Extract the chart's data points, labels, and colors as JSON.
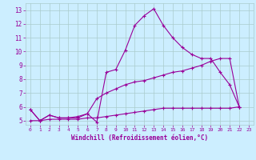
{
  "xlabel": "Windchill (Refroidissement éolien,°C)",
  "x_values": [
    0,
    1,
    2,
    3,
    4,
    5,
    6,
    7,
    8,
    9,
    10,
    11,
    12,
    13,
    14,
    15,
    16,
    17,
    18,
    19,
    20,
    21,
    22,
    23
  ],
  "line1": [
    5.8,
    5.0,
    5.4,
    5.2,
    5.2,
    5.2,
    5.5,
    4.9,
    8.5,
    8.7,
    10.1,
    11.9,
    12.6,
    13.1,
    11.9,
    11.0,
    10.3,
    9.8,
    9.5,
    9.5,
    8.5,
    7.6,
    6.0,
    null
  ],
  "line2": [
    5.8,
    5.0,
    5.4,
    5.2,
    5.2,
    5.3,
    5.5,
    6.6,
    7.0,
    7.3,
    7.6,
    7.8,
    7.9,
    8.1,
    8.3,
    8.5,
    8.6,
    8.8,
    9.0,
    9.3,
    9.5,
    9.5,
    6.0,
    null
  ],
  "line3": [
    5.0,
    5.0,
    5.1,
    5.1,
    5.1,
    5.1,
    5.2,
    5.2,
    5.3,
    5.4,
    5.5,
    5.6,
    5.7,
    5.8,
    5.9,
    5.9,
    5.9,
    5.9,
    5.9,
    5.9,
    5.9,
    5.9,
    6.0,
    null
  ],
  "line_color": "#990099",
  "bg_color": "#cceeff",
  "grid_color": "#aacccc",
  "xlim": [
    -0.5,
    23.5
  ],
  "ylim": [
    4.7,
    13.5
  ],
  "yticks": [
    5,
    6,
    7,
    8,
    9,
    10,
    11,
    12,
    13
  ],
  "xticks": [
    0,
    1,
    2,
    3,
    4,
    5,
    6,
    7,
    8,
    9,
    10,
    11,
    12,
    13,
    14,
    15,
    16,
    17,
    18,
    19,
    20,
    21,
    22,
    23
  ]
}
